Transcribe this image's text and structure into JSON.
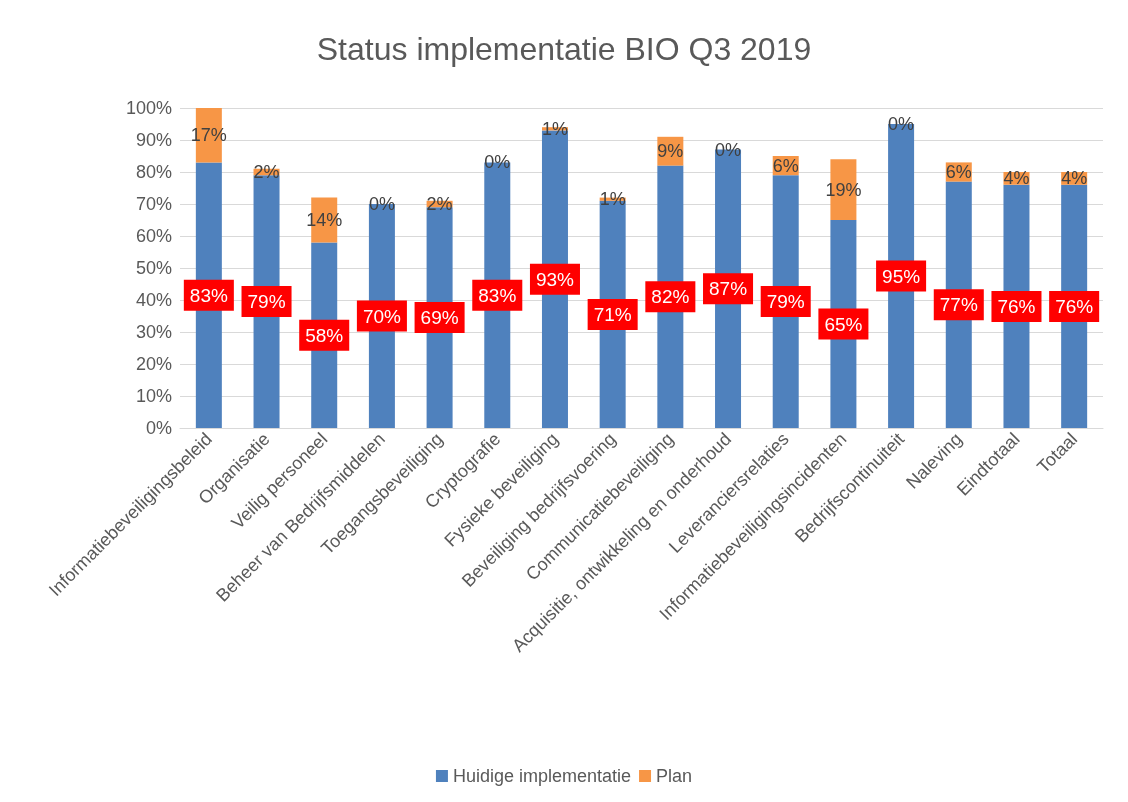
{
  "chart_data": {
    "type": "bar",
    "title": "Status implementatie BIO Q3 2019",
    "categories": [
      "Informatiebeveiligingsbeleid",
      "Organisatie",
      "Veilig personeel",
      "Beheer van Bedrijfsmiddelen",
      "Toegangsbeveiliging",
      "Cryptografie",
      "Fysieke beveiliging",
      "Beveiliging bedrijfsvoering",
      "Communicatiebeveiliging",
      "Acquisitie, ontwikkeling en onderhoud",
      "Leveranciersrelaties",
      "Informatiebeveiligingsincidenten",
      "Bedrijfscontinuiteit",
      "Naleving",
      "Eindtotaal",
      "Totaal"
    ],
    "series": [
      {
        "name": "Huidige implementatie",
        "color": "#4f81bd",
        "values": [
          83,
          79,
          58,
          70,
          69,
          83,
          93,
          71,
          82,
          87,
          79,
          65,
          95,
          77,
          76,
          76
        ],
        "value_labels": [
          "83%",
          "79%",
          "58%",
          "70%",
          "69%",
          "83%",
          "93%",
          "71%",
          "82%",
          "87%",
          "79%",
          "65%",
          "95%",
          "77%",
          "76%",
          "76%"
        ]
      },
      {
        "name": "Plan",
        "color": "#f79646",
        "values": [
          17,
          2,
          14,
          0,
          2,
          0,
          1,
          1,
          9,
          0,
          6,
          19,
          0,
          6,
          4,
          4
        ],
        "value_labels": [
          "17%",
          "2%",
          "14%",
          "0%",
          "2%",
          "0%",
          "1%",
          "1%",
          "9%",
          "0%",
          "6%",
          "19%",
          "0%",
          "6%",
          "4%",
          "4%"
        ]
      }
    ],
    "stacked": true,
    "ylim": [
      0,
      100
    ],
    "yticks": [
      {
        "value": 0,
        "label": "0%"
      },
      {
        "value": 10,
        "label": "10%"
      },
      {
        "value": 20,
        "label": "20%"
      },
      {
        "value": 30,
        "label": "30%"
      },
      {
        "value": 40,
        "label": "40%"
      },
      {
        "value": 50,
        "label": "50%"
      },
      {
        "value": 60,
        "label": "60%"
      },
      {
        "value": 70,
        "label": "70%"
      },
      {
        "value": 80,
        "label": "80%"
      },
      {
        "value": 90,
        "label": "90%"
      },
      {
        "value": 100,
        "label": "100%"
      }
    ],
    "grid": "y",
    "legend": "bottom"
  }
}
